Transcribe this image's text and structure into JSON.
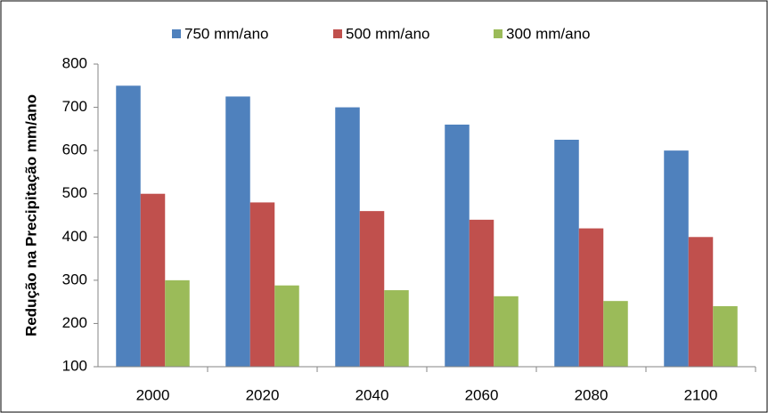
{
  "chart_data": {
    "type": "bar",
    "y_label": "Redução na Precipitação mm/ano",
    "categories": [
      "2000",
      "2020",
      "2040",
      "2060",
      "2080",
      "2100"
    ],
    "series": [
      {
        "name": "750 mm/ano",
        "color": "#4f81bd",
        "values": [
          750,
          725,
          700,
          660,
          625,
          600
        ]
      },
      {
        "name": "500 mm/ano",
        "color": "#c0504d",
        "values": [
          500,
          480,
          460,
          440,
          420,
          400
        ]
      },
      {
        "name": "300 mm/ano",
        "color": "#9bbb59",
        "values": [
          300,
          288,
          277,
          263,
          252,
          240
        ]
      }
    ],
    "ylim": [
      100,
      800
    ],
    "yticks": [
      100,
      200,
      300,
      400,
      500,
      600,
      700,
      800
    ],
    "grid": false,
    "legend": "top"
  }
}
